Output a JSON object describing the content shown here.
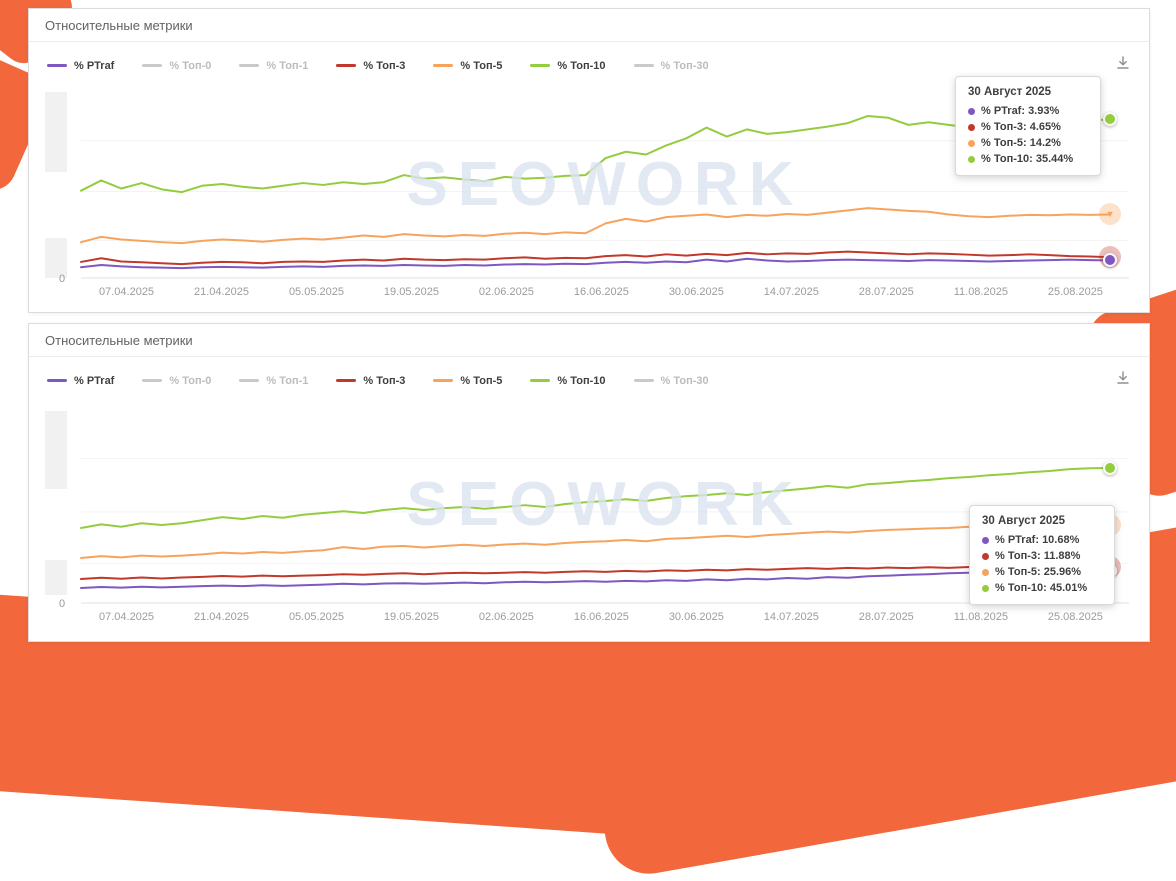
{
  "watermark": "SEOWORK",
  "accent_color": "#f2683c",
  "icons": {
    "download": "tray-arrow-down"
  },
  "legend": [
    {
      "label": "% PTraf",
      "color": "#7e57c2",
      "active": true
    },
    {
      "label": "% Топ-0",
      "color": "#c9c9c9",
      "active": false
    },
    {
      "label": "% Топ-1",
      "color": "#c9c9c9",
      "active": false
    },
    {
      "label": "% Топ-3",
      "color": "#c0392b",
      "active": true
    },
    {
      "label": "% Топ-5",
      "color": "#f7a35c",
      "active": true
    },
    {
      "label": "% Топ-10",
      "color": "#94cc3f",
      "active": true
    },
    {
      "label": "% Топ-30",
      "color": "#c9c9c9",
      "active": false
    }
  ],
  "x_labels": [
    "07.04.2025",
    "21.04.2025",
    "05.05.2025",
    "19.05.2025",
    "02.06.2025",
    "16.06.2025",
    "30.06.2025",
    "14.07.2025",
    "28.07.2025",
    "11.08.2025",
    "25.08.2025"
  ],
  "chart_data": [
    {
      "type": "line",
      "title": "Относительные метрики",
      "ylim": [
        0,
        42
      ],
      "y_zero_label": "0",
      "grid": true,
      "legend_position": "top",
      "series": [
        {
          "name": "% Топ-10",
          "color": "#94cc3f",
          "end_marker": "dot",
          "values": [
            19.5,
            21.8,
            20.0,
            21.2,
            19.8,
            19.2,
            20.6,
            21.0,
            20.4,
            20.0,
            20.6,
            21.2,
            20.8,
            21.4,
            21.0,
            21.4,
            23.0,
            22.2,
            22.5,
            22.0,
            21.6,
            22.6,
            22.2,
            22.4,
            22.8,
            23.0,
            26.8,
            28.2,
            27.6,
            29.6,
            31.2,
            33.6,
            31.6,
            33.2,
            32.2,
            32.6,
            33.2,
            33.8,
            34.6,
            36.2,
            35.8,
            34.2,
            34.8,
            34.2,
            33.6,
            32.8,
            33.2,
            33.6,
            34.0,
            34.6,
            35.2,
            35.44
          ]
        },
        {
          "name": "% Топ-5",
          "color": "#f7a35c",
          "end_marker": "triangle-down-circle",
          "values": [
            8.0,
            9.2,
            8.6,
            8.3,
            8.0,
            7.8,
            8.3,
            8.6,
            8.4,
            8.1,
            8.5,
            8.8,
            8.6,
            9.0,
            9.5,
            9.2,
            9.8,
            9.5,
            9.3,
            9.6,
            9.4,
            9.9,
            10.1,
            9.8,
            10.2,
            10.0,
            12.2,
            13.2,
            12.6,
            13.6,
            13.9,
            14.2,
            13.6,
            14.1,
            13.9,
            14.3,
            14.1,
            14.6,
            15.1,
            15.6,
            15.3,
            15.0,
            14.8,
            14.2,
            13.8,
            13.6,
            13.9,
            14.1,
            14.0,
            14.2,
            14.1,
            14.2
          ]
        },
        {
          "name": "% Топ-3",
          "color": "#c0392b",
          "end_marker": "triangle-up-circle",
          "values": [
            3.6,
            4.4,
            3.7,
            3.5,
            3.3,
            3.1,
            3.4,
            3.6,
            3.5,
            3.3,
            3.6,
            3.7,
            3.6,
            3.9,
            4.1,
            3.9,
            4.3,
            4.1,
            4.0,
            4.2,
            4.1,
            4.4,
            4.6,
            4.3,
            4.5,
            4.4,
            4.9,
            5.1,
            4.8,
            5.3,
            5.0,
            5.4,
            5.1,
            5.6,
            5.3,
            5.5,
            5.4,
            5.7,
            5.9,
            5.7,
            5.5,
            5.3,
            5.5,
            5.4,
            5.2,
            5.0,
            5.1,
            5.3,
            5.1,
            4.9,
            4.8,
            4.65
          ]
        },
        {
          "name": "% PTraf",
          "color": "#7e57c2",
          "end_marker": "dot",
          "values": [
            2.4,
            2.9,
            2.6,
            2.4,
            2.3,
            2.2,
            2.4,
            2.5,
            2.4,
            2.3,
            2.5,
            2.6,
            2.5,
            2.7,
            2.8,
            2.7,
            2.9,
            2.8,
            2.7,
            2.9,
            2.8,
            3.0,
            3.1,
            3.0,
            3.2,
            3.1,
            3.4,
            3.6,
            3.4,
            3.7,
            3.5,
            4.1,
            3.7,
            4.3,
            3.9,
            3.7,
            3.8,
            4.0,
            4.1,
            4.0,
            3.9,
            3.8,
            4.0,
            3.9,
            3.8,
            3.7,
            3.8,
            3.9,
            4.0,
            4.1,
            4.0,
            3.93
          ]
        }
      ],
      "tooltip": {
        "title": "30 Август 2025",
        "rows": [
          {
            "label": "% PTraf",
            "value": "3.93%",
            "color": "#7e57c2"
          },
          {
            "label": "% Топ-3",
            "value": "4.65%",
            "color": "#c0392b"
          },
          {
            "label": "% Топ-5",
            "value": "14.2%",
            "color": "#f7a35c"
          },
          {
            "label": "% Топ-10",
            "value": "35.44%",
            "color": "#94cc3f"
          }
        ]
      }
    },
    {
      "type": "line",
      "title": "Относительные метрики",
      "ylim": [
        0,
        66
      ],
      "y_zero_label": "0",
      "grid": true,
      "legend_position": "top",
      "series": [
        {
          "name": "% Топ-10",
          "color": "#94cc3f",
          "end_marker": "dot",
          "values": [
            25.0,
            26.2,
            25.4,
            26.6,
            26.0,
            26.6,
            27.6,
            28.6,
            28.0,
            29.0,
            28.4,
            29.4,
            30.0,
            30.6,
            30.0,
            31.0,
            31.6,
            31.0,
            31.6,
            32.0,
            31.4,
            32.0,
            32.6,
            32.0,
            33.0,
            33.6,
            34.0,
            34.6,
            34.0,
            35.0,
            35.6,
            36.0,
            36.6,
            36.0,
            37.0,
            37.6,
            38.2,
            39.0,
            38.4,
            39.6,
            40.0,
            40.6,
            41.0,
            41.6,
            42.0,
            42.6,
            43.0,
            43.6,
            44.0,
            44.6,
            44.9,
            45.01
          ]
        },
        {
          "name": "% Топ-5",
          "color": "#f7a35c",
          "end_marker": "triangle-down-circle",
          "values": [
            15.0,
            15.6,
            15.2,
            15.8,
            15.5,
            15.8,
            16.2,
            16.8,
            16.5,
            17.0,
            16.7,
            17.2,
            17.6,
            18.6,
            18.0,
            18.8,
            19.0,
            18.5,
            19.0,
            19.4,
            19.0,
            19.5,
            19.8,
            19.4,
            20.0,
            20.4,
            20.6,
            21.0,
            20.6,
            21.4,
            21.6,
            22.0,
            22.4,
            22.0,
            22.6,
            23.0,
            23.4,
            23.8,
            23.5,
            24.0,
            24.4,
            24.6,
            24.8,
            25.0,
            25.4,
            25.0,
            25.4,
            25.6,
            25.8,
            26.0,
            25.9,
            25.96
          ]
        },
        {
          "name": "% Топ-3",
          "color": "#c0392b",
          "end_marker": "triangle-up-circle",
          "values": [
            8.0,
            8.4,
            8.1,
            8.5,
            8.2,
            8.5,
            8.7,
            9.0,
            8.8,
            9.1,
            8.9,
            9.1,
            9.3,
            9.6,
            9.4,
            9.7,
            9.9,
            9.6,
            9.9,
            10.1,
            9.9,
            10.1,
            10.3,
            10.1,
            10.4,
            10.6,
            10.4,
            10.7,
            10.5,
            10.9,
            10.7,
            11.1,
            10.9,
            11.3,
            11.1,
            11.4,
            11.6,
            11.4,
            11.7,
            11.5,
            11.8,
            11.6,
            11.9,
            11.7,
            12.0,
            11.8,
            12.1,
            11.9,
            12.1,
            12.0,
            11.95,
            11.88
          ]
        },
        {
          "name": "% PTraf",
          "color": "#7e57c2",
          "end_marker": "dot",
          "values": [
            5.0,
            5.3,
            5.1,
            5.4,
            5.2,
            5.4,
            5.6,
            5.8,
            5.6,
            5.9,
            5.7,
            5.9,
            6.1,
            6.4,
            6.2,
            6.5,
            6.6,
            6.4,
            6.6,
            6.8,
            6.6,
            6.9,
            7.1,
            6.9,
            7.1,
            7.3,
            7.1,
            7.4,
            7.2,
            7.6,
            7.4,
            7.9,
            7.6,
            8.1,
            7.9,
            8.3,
            8.1,
            8.6,
            8.4,
            8.9,
            9.1,
            9.4,
            9.6,
            9.9,
            10.1,
            10.3,
            10.1,
            10.4,
            10.6,
            10.7,
            10.68,
            10.68
          ]
        }
      ],
      "tooltip": {
        "title": "30 Август 2025",
        "rows": [
          {
            "label": "% PTraf",
            "value": "10.68%",
            "color": "#7e57c2"
          },
          {
            "label": "% Топ-3",
            "value": "11.88%",
            "color": "#c0392b"
          },
          {
            "label": "% Топ-5",
            "value": "25.96%",
            "color": "#f7a35c"
          },
          {
            "label": "% Топ-10",
            "value": "45.01%",
            "color": "#94cc3f"
          }
        ]
      }
    }
  ]
}
